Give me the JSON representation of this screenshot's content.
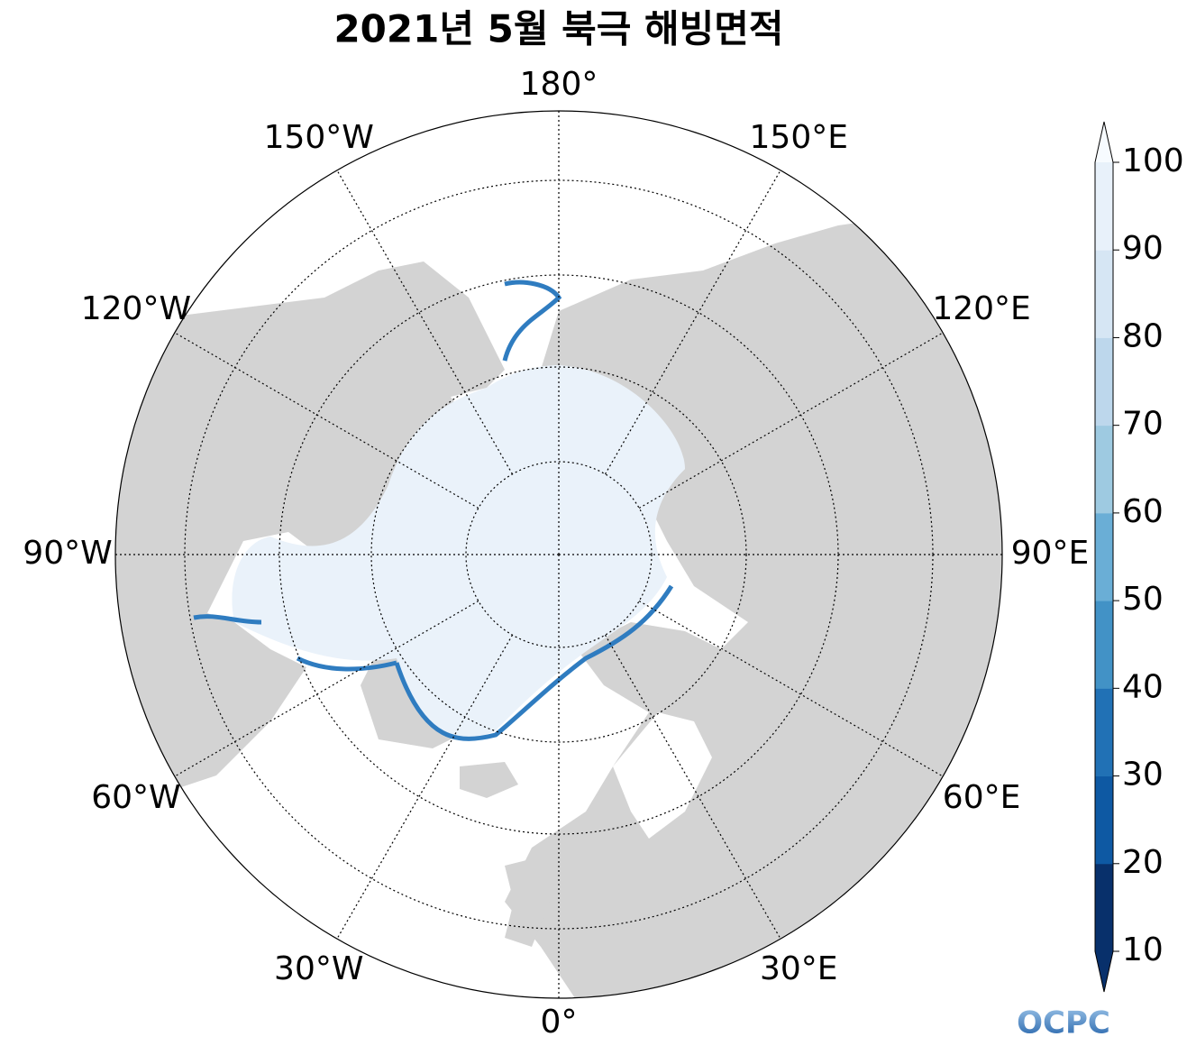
{
  "title": "2021년 5월 북극 해빙면적",
  "longitude_labels": [
    "0°",
    "30°E",
    "60°E",
    "90°E",
    "120°E",
    "150°E",
    "180°",
    "150°W",
    "120°W",
    "90°W",
    "60°W",
    "30°W"
  ],
  "colorbar": {
    "ticks": [
      10,
      20,
      30,
      40,
      50,
      60,
      70,
      80,
      90,
      100
    ],
    "colors": [
      "#08306b",
      "#0e59a3",
      "#2171b5",
      "#4292c6",
      "#6aaed6",
      "#9ecae1",
      "#bdd7ec",
      "#d6e6f4",
      "#e8f1fa"
    ],
    "extend_colors": [
      "#08306b",
      "#f7fbff"
    ]
  },
  "logo": "OCPC"
}
